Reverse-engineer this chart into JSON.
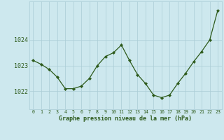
{
  "hours": [
    0,
    1,
    2,
    3,
    4,
    5,
    6,
    7,
    8,
    9,
    10,
    11,
    12,
    13,
    14,
    15,
    16,
    17,
    18,
    19,
    20,
    21,
    22,
    23
  ],
  "pressure": [
    1023.2,
    1023.05,
    1022.85,
    1022.55,
    1022.1,
    1022.1,
    1022.2,
    1022.5,
    1023.0,
    1023.35,
    1023.5,
    1023.8,
    1023.2,
    1022.65,
    1022.3,
    1021.85,
    1021.75,
    1021.85,
    1022.3,
    1022.7,
    1023.15,
    1023.55,
    1024.0,
    1025.15
  ],
  "line_color": "#2d5a1b",
  "marker_color": "#2d5a1b",
  "bg_color": "#cde8ee",
  "grid_color": "#aaccd5",
  "axis_label_color": "#2d5a1b",
  "title": "Graphe pression niveau de la mer (hPa)",
  "yticks": [
    1022,
    1023,
    1024
  ],
  "ylim": [
    1021.3,
    1025.5
  ],
  "xlim": [
    -0.5,
    23.5
  ]
}
